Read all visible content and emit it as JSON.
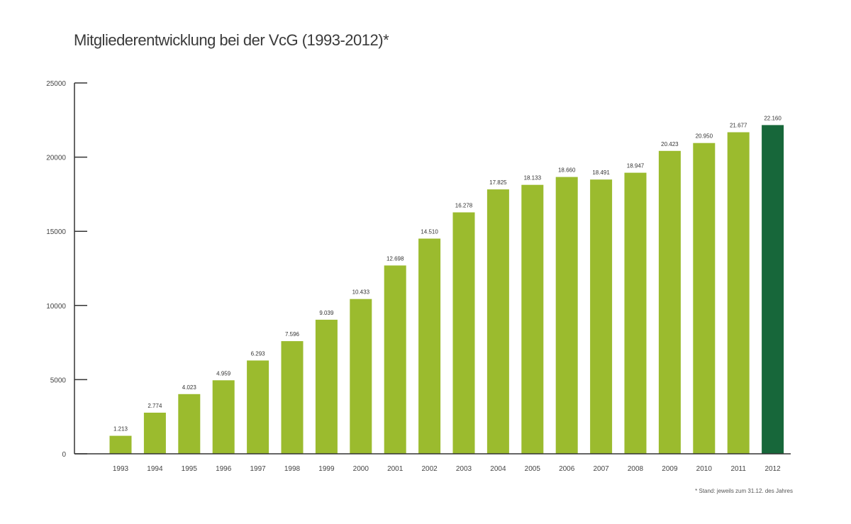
{
  "colors": {
    "bar": "#9bbb2e",
    "highlight_bar": "#17673a",
    "axis": "#333333"
  },
  "chart_data": {
    "type": "bar",
    "title": "Mitgliederentwicklung bei der VcG (1993-2012)*",
    "footnote": "* Stand: jeweils zum 31.12. des Jahres",
    "xlabel": "",
    "ylabel": "",
    "ylim": [
      0,
      25000
    ],
    "yticks": [
      "0",
      "5000",
      "10000",
      "15000",
      "20000",
      "25000"
    ],
    "ytick_values": [
      0,
      5000,
      10000,
      15000,
      20000,
      25000
    ],
    "grid": false,
    "highlight_category": "2012",
    "categories": [
      "1993",
      "1994",
      "1995",
      "1996",
      "1997",
      "1998",
      "1999",
      "2000",
      "2001",
      "2002",
      "2003",
      "2004",
      "2005",
      "2006",
      "2007",
      "2008",
      "2009",
      "2010",
      "2011",
      "2012"
    ],
    "values": [
      1213,
      2774,
      4023,
      4959,
      6293,
      7596,
      9039,
      10433,
      12698,
      14510,
      16278,
      17825,
      18133,
      18660,
      18491,
      18947,
      20423,
      20950,
      21677,
      22160
    ],
    "data_labels": [
      "1.213",
      "2.774",
      "4.023",
      "4.959",
      "6.293",
      "7.596",
      "9.039",
      "10.433",
      "12.698",
      "14.510",
      "16.278",
      "17.825",
      "18.133",
      "18.660",
      "18.491",
      "18.947",
      "20.423",
      "20.950",
      "21.677",
      "22.160"
    ]
  }
}
